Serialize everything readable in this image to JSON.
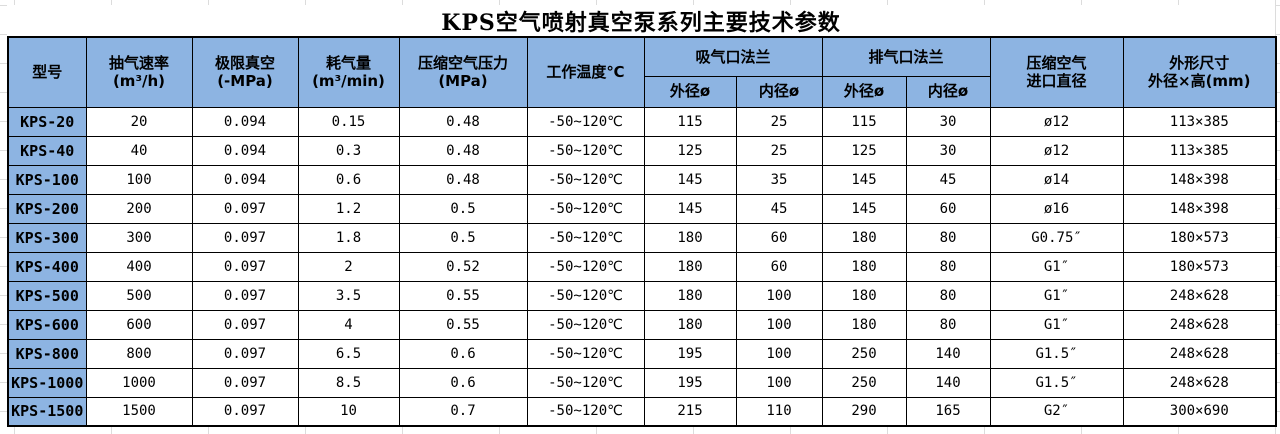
{
  "colors": {
    "header_bg": "#8DB4E2",
    "border": "#000000",
    "grid_line": "#DCDCDC",
    "text": "#000000"
  },
  "title": "KPS空气喷射真空泵系列主要技术参数",
  "table": {
    "header": {
      "model": "型号",
      "pumping_speed_l1": "抽气速率",
      "pumping_speed_l2": "(m³/h)",
      "ultimate_vacuum_l1": "极限真空",
      "ultimate_vacuum_l2": "(-MPa)",
      "gas_consumption_l1": "耗气量",
      "gas_consumption_l2": "(m³/min)",
      "compressed_air_pressure_l1": "压缩空气压力",
      "compressed_air_pressure_l2": "(MPa)",
      "working_temperature": "工作温度℃",
      "suction_flange_group": "吸气口法兰",
      "exhaust_flange_group": "排气口法兰",
      "outer_diameter": "外径ø",
      "inner_diameter": "内径ø",
      "air_inlet_l1": "压缩空气",
      "air_inlet_l2": "进口直径",
      "dimensions_l1": "外形尺寸",
      "dimensions_l2": "外径×高(mm)"
    },
    "rows": [
      [
        "KPS-20",
        "20",
        "0.094",
        "0.15",
        "0.48",
        "-50~120℃",
        "115",
        "25",
        "115",
        "30",
        "ø12",
        "113×385"
      ],
      [
        "KPS-40",
        "40",
        "0.094",
        "0.3",
        "0.48",
        "-50~120℃",
        "125",
        "25",
        "125",
        "30",
        "ø12",
        "113×385"
      ],
      [
        "KPS-100",
        "100",
        "0.094",
        "0.6",
        "0.48",
        "-50~120℃",
        "145",
        "35",
        "145",
        "45",
        "ø14",
        "148×398"
      ],
      [
        "KPS-200",
        "200",
        "0.097",
        "1.2",
        "0.5",
        "-50~120℃",
        "145",
        "45",
        "145",
        "60",
        "ø16",
        "148×398"
      ],
      [
        "KPS-300",
        "300",
        "0.097",
        "1.8",
        "0.5",
        "-50~120℃",
        "180",
        "60",
        "180",
        "80",
        "G0.75″",
        "180×573"
      ],
      [
        "KPS-400",
        "400",
        "0.097",
        "2",
        "0.52",
        "-50~120℃",
        "180",
        "60",
        "180",
        "80",
        "G1″",
        "180×573"
      ],
      [
        "KPS-500",
        "500",
        "0.097",
        "3.5",
        "0.55",
        "-50~120℃",
        "180",
        "100",
        "180",
        "80",
        "G1″",
        "248×628"
      ],
      [
        "KPS-600",
        "600",
        "0.097",
        "4",
        "0.55",
        "-50~120℃",
        "180",
        "100",
        "180",
        "80",
        "G1″",
        "248×628"
      ],
      [
        "KPS-800",
        "800",
        "0.097",
        "6.5",
        "0.6",
        "-50~120℃",
        "195",
        "100",
        "250",
        "140",
        "G1.5″",
        "248×628"
      ],
      [
        "KPS-1000",
        "1000",
        "0.097",
        "8.5",
        "0.6",
        "-50~120℃",
        "195",
        "100",
        "250",
        "140",
        "G1.5″",
        "248×628"
      ],
      [
        "KPS-1500",
        "1500",
        "0.097",
        "10",
        "0.7",
        "-50~120℃",
        "215",
        "110",
        "290",
        "165",
        "G2″",
        "300×690"
      ]
    ]
  }
}
